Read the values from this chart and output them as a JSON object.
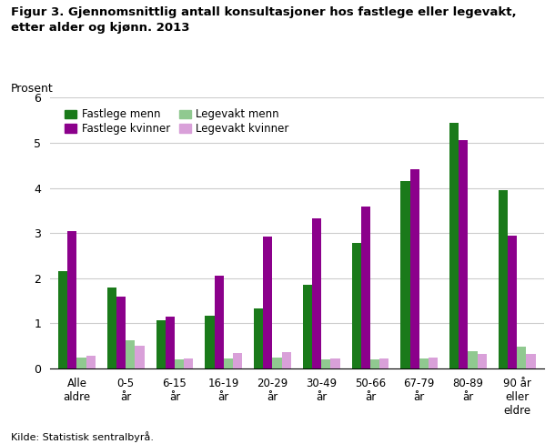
{
  "title_line1": "Figur 3. Gjennomsnittlig antall konsultasjoner hos fastlege eller legevakt,",
  "title_line2": "etter alder og kjønn. 2013",
  "ylabel": "Prosent",
  "xlabel_source": "Kilde: Statistisk sentralbyrå.",
  "categories": [
    "Alle\naldre",
    "0-5\når",
    "6-15\når",
    "16-19\når",
    "20-29\når",
    "30-49\når",
    "50-66\når",
    "67-79\når",
    "80-89\når",
    "90 år\neller\neldre"
  ],
  "fastlege_menn": [
    2.15,
    1.8,
    1.07,
    1.17,
    1.33,
    1.85,
    2.78,
    4.15,
    5.45,
    3.95
  ],
  "fastlege_kvinner": [
    3.05,
    1.6,
    1.15,
    2.05,
    2.93,
    3.33,
    3.58,
    4.42,
    5.05,
    2.95
  ],
  "legevakt_menn": [
    0.25,
    0.62,
    0.2,
    0.23,
    0.25,
    0.2,
    0.2,
    0.23,
    0.38,
    0.48
  ],
  "legevakt_kvinner": [
    0.28,
    0.5,
    0.22,
    0.35,
    0.37,
    0.22,
    0.22,
    0.25,
    0.32,
    0.32
  ],
  "color_fastlege_menn": "#1a7a1a",
  "color_fastlege_kvinner": "#8b008b",
  "color_legevakt_menn": "#90c990",
  "color_legevakt_kvinner": "#d9a0d9",
  "ylim": [
    0,
    6
  ],
  "yticks": [
    0,
    1,
    2,
    3,
    4,
    5,
    6
  ],
  "legend_labels": [
    "Fastlege menn",
    "Fastlege kvinner",
    "Legevakt menn",
    "Legevakt kvinner"
  ],
  "background_color": "#ffffff",
  "grid_color": "#cccccc",
  "bar_width": 0.19
}
